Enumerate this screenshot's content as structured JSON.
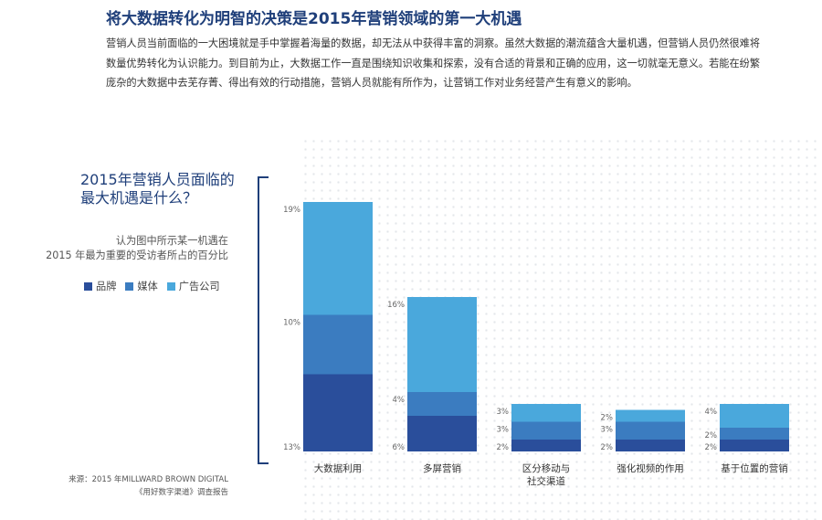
{
  "headline": "将大数据转化为明智的决策是2015年营销领域的第一大机遇",
  "intro": "营销人员当前面临的一大困境就是手中掌握着海量的数据，却无法从中获得丰富的洞察。虽然大数据的潮流蕴含大量机遇，但营销人员仍然很难将数量优势转化为认识能力。到目前为止，大数据工作一直是围绕知识收集和探索，没有合适的背景和正确的应用，这一切就毫无意义。若能在纷繁庞杂的大数据中去芜存菁、得出有效的行动措施，营销人员就能有所作为，让营销工作对业务经营产生有意义的影响。",
  "side": {
    "title_line1": "2015年营销人员面临的",
    "title_line2": "最大机遇是什么？",
    "desc_line1": "认为图中所示某一机遇在",
    "desc_line2": "2015 年最为重要的受访者所占的百分比"
  },
  "source": {
    "line1": "来源：2015 年MILLWARD BROWN DIGITAL",
    "line2": "《用好数字渠道》调查报告"
  },
  "colors": {
    "brand": "#2a4e9b",
    "media": "#3b7cc0",
    "agency": "#4aa8dc",
    "title": "#1f3f7a"
  },
  "chart_data": {
    "type": "bar",
    "stacked": true,
    "categories": [
      {
        "line1": "大数据利用",
        "line2": ""
      },
      {
        "line1": "多屏营销",
        "line2": ""
      },
      {
        "line1": "区分移动与",
        "line2": "社交渠道"
      },
      {
        "line1": "强化视频的作用",
        "line2": ""
      },
      {
        "line1": "基于位置的营销",
        "line2": ""
      }
    ],
    "series": [
      {
        "name": "品牌",
        "key": "brand",
        "values": [
          13,
          6,
          2,
          2,
          2
        ],
        "labels": [
          "13%",
          "6%",
          "2%",
          "2%",
          "2%"
        ]
      },
      {
        "name": "媒体",
        "key": "media",
        "values": [
          10,
          4,
          3,
          3,
          2
        ],
        "labels": [
          "10%",
          "4%",
          "3%",
          "3%",
          "2%"
        ]
      },
      {
        "name": "广告公司",
        "key": "agency",
        "values": [
          19,
          16,
          3,
          2,
          4
        ],
        "labels": [
          "19%",
          "16%",
          "3%",
          "2%",
          "4%"
        ]
      }
    ],
    "title": "2015年营销人员面临的最大机遇是什么？",
    "xlabel": "",
    "ylabel": "",
    "ylim": [
      0,
      42
    ]
  }
}
